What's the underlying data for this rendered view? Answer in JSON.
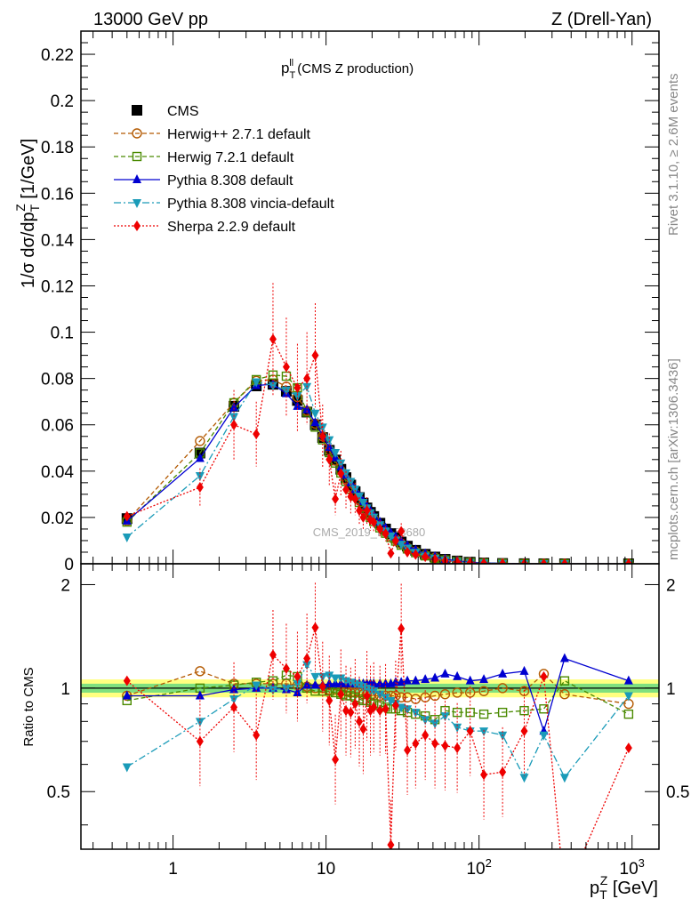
{
  "header": {
    "left": "13000 GeV pp",
    "right": "Z (Drell-Yan)"
  },
  "side_labels": {
    "rivet": "Rivet 3.1.10, ≥ 2.6M events",
    "mcplots": "mcplots.cern.ch [arXiv:1306.3436]"
  },
  "plot_title": {
    "main": "p",
    "sup": "ll",
    "sub": "T",
    "rest": " (CMS Z production)"
  },
  "watermark": "CMS_2019_I1753680",
  "axes": {
    "ylabel_upper": "1/σ dσ/dp",
    "ylabel_upper_sup": "Z",
    "ylabel_upper_sub": "T",
    "ylabel_upper_unit": " [1/GeV]",
    "ylabel_lower": "Ratio to CMS",
    "xlabel_main": "p",
    "xlabel_sup": "Z",
    "xlabel_sub": "T",
    "xlabel_unit": " [GeV]"
  },
  "colors": {
    "CMS": "#000000",
    "Herwig++ 2.7.1 default": "#b35900",
    "Herwig 7.2.1 default": "#4a8a00",
    "Pythia 8.308 default": "#0000d0",
    "Pythia 8.308 vincia-default": "#1a9bb8",
    "Sherpa 2.2.9 default": "#ee0000",
    "band_inner": "#7fe07f",
    "band_outer": "#ffff80"
  },
  "chart_data": [
    {
      "type": "line",
      "title": "",
      "xlabel": "p_T^Z [GeV]",
      "ylabel": "1/σ dσ/dp_T^Z [1/GeV]",
      "xscale": "log",
      "xlim": [
        0.25,
        1500
      ],
      "ylim": [
        0,
        0.23
      ],
      "yticks": [
        0,
        0.02,
        0.04,
        0.06,
        0.08,
        0.1,
        0.12,
        0.14,
        0.16,
        0.18,
        0.2,
        0.22
      ],
      "ytick_labels": [
        "0",
        "0.02",
        "0.04",
        "0.06",
        "0.08",
        "0.1",
        "0.12",
        "0.14",
        "0.16",
        "0.18",
        "0.2",
        "0.22"
      ],
      "legend_position": "top-left",
      "x": [
        0.5,
        1.5,
        2.5,
        3.5,
        4.5,
        5.5,
        6.5,
        7.5,
        8.5,
        9.5,
        10.5,
        11.5,
        12.5,
        13.5,
        14.5,
        15.5,
        16.5,
        17.5,
        18.5,
        19.5,
        20.5,
        22.5,
        24.5,
        26.5,
        28.5,
        31.0,
        34.0,
        38.5,
        44.5,
        51.5,
        60.0,
        72.0,
        87.5,
        107.5,
        142.5,
        197.5,
        265.0,
        362.5,
        950.0
      ],
      "series": [
        {
          "name": "CMS",
          "marker": "square",
          "values": [
            0.0195,
            0.0478,
            0.068,
            0.0768,
            0.0775,
            0.0745,
            0.0705,
            0.0655,
            0.06,
            0.0545,
            0.049,
            0.0448,
            0.0408,
            0.0372,
            0.034,
            0.0311,
            0.0286,
            0.0262,
            0.0241,
            0.0222,
            0.0204,
            0.0175,
            0.015,
            0.013,
            0.0113,
            0.0094,
            0.0076,
            0.0058,
            0.0041,
            0.0029,
            0.0019,
            0.0012,
            0.00067,
            0.00036,
            0.00014,
            4e-05,
            1.2e-05,
            4e-06,
            3e-07
          ]
        },
        {
          "name": "Herwig++ 2.7.1 default",
          "marker": "circle-open",
          "values": [
            0.0185,
            0.053,
            0.0695,
            0.079,
            0.0795,
            0.0765,
            0.072,
            0.066,
            0.0605,
            0.055,
            0.049,
            0.0445,
            0.0402,
            0.0365,
            0.033,
            0.0302,
            0.0276,
            0.0252,
            0.023,
            0.0211,
            0.0193,
            0.0164,
            0.0139,
            0.012,
            0.0104,
            0.0086,
            0.0069,
            0.0053,
            0.0037,
            0.0026,
            0.0017,
            0.0011,
            0.00064,
            0.00035,
            0.00014,
            3.8e-05,
            1.3e-05,
            3.8e-06,
            3e-07
          ]
        },
        {
          "name": "Herwig 7.2.1 default",
          "marker": "square-open",
          "values": [
            0.018,
            0.0478,
            0.0695,
            0.0795,
            0.0815,
            0.081,
            0.076,
            0.0655,
            0.059,
            0.0535,
            0.048,
            0.0435,
            0.0392,
            0.0355,
            0.0322,
            0.0292,
            0.0265,
            0.0241,
            0.022,
            0.02,
            0.0183,
            0.0155,
            0.0132,
            0.0113,
            0.0098,
            0.008,
            0.0064,
            0.0048,
            0.0034,
            0.0023,
            0.0016,
            0.001,
            0.00057,
            0.00031,
            0.00012,
            3.4e-05,
            1.1e-05,
            4.2e-06,
            2.5e-07
          ]
        },
        {
          "name": "Pythia 8.308 default",
          "marker": "triangle-up",
          "values": [
            0.0185,
            0.0455,
            0.0675,
            0.077,
            0.0775,
            0.0735,
            0.068,
            0.0665,
            0.061,
            0.0555,
            0.0502,
            0.0458,
            0.0418,
            0.0382,
            0.035,
            0.032,
            0.0294,
            0.0269,
            0.0248,
            0.0229,
            0.021,
            0.018,
            0.0155,
            0.0134,
            0.0117,
            0.0097,
            0.0079,
            0.006,
            0.0043,
            0.0031,
            0.002,
            0.00125,
            0.0007,
            0.00038,
            0.00016,
            4.3e-05,
            1.2e-05,
            4.9e-06,
            3e-07
          ]
        },
        {
          "name": "Pythia 8.308 vincia-default",
          "marker": "triangle-down",
          "values": [
            0.0115,
            0.038,
            0.0635,
            0.0785,
            0.077,
            0.075,
            0.0725,
            0.0765,
            0.065,
            0.059,
            0.0535,
            0.048,
            0.0435,
            0.0392,
            0.0355,
            0.0322,
            0.0292,
            0.0265,
            0.0241,
            0.022,
            0.0201,
            0.0168,
            0.0141,
            0.012,
            0.0102,
            0.0084,
            0.0067,
            0.0049,
            0.0033,
            0.0023,
            0.0015,
            0.0009,
            0.0005,
            0.00027,
            0.0001,
            2.3e-05,
            8.5e-06,
            2.2e-06,
            2.9e-07
          ]
        },
        {
          "name": "Sherpa 2.2.9 default",
          "marker": "diamond",
          "values": [
            0.0205,
            0.033,
            0.06,
            0.056,
            0.097,
            0.085,
            0.076,
            0.08,
            0.09,
            0.055,
            0.045,
            0.028,
            0.039,
            0.032,
            0.029,
            0.028,
            0.023,
            0.02,
            0.023,
            0.019,
            0.018,
            0.015,
            0.013,
            0.0045,
            0.01,
            0.014,
            0.005,
            0.004,
            0.003,
            0.002,
            0.0013,
            0.0008,
            0.0005,
            0.0002,
            8e-05,
            3e-05,
            1.3e-05,
            1e-06,
            2e-07
          ]
        }
      ]
    },
    {
      "type": "line",
      "title": "",
      "xlabel": "p_T^Z [GeV]",
      "ylabel": "Ratio to CMS",
      "xscale": "log",
      "xlim": [
        0.25,
        1500
      ],
      "ylim": [
        0.34,
        2.3
      ],
      "yscale": "log",
      "yticks": [
        0.5,
        1,
        2
      ],
      "ytick_labels": [
        "0.5",
        "1",
        "2"
      ],
      "xticks": [
        1,
        10,
        100,
        1000
      ],
      "xtick_labels": [
        "1",
        "10",
        "10^2",
        "10^3"
      ],
      "reference_band": {
        "inner": [
          0.97,
          1.03
        ],
        "outer": [
          0.94,
          1.06
        ]
      },
      "x": [
        0.5,
        1.5,
        2.5,
        3.5,
        4.5,
        5.5,
        6.5,
        7.5,
        8.5,
        9.5,
        10.5,
        11.5,
        12.5,
        13.5,
        14.5,
        15.5,
        16.5,
        17.5,
        18.5,
        19.5,
        20.5,
        22.5,
        24.5,
        26.5,
        28.5,
        31.0,
        34.0,
        38.5,
        44.5,
        51.5,
        60.0,
        72.0,
        87.5,
        107.5,
        142.5,
        197.5,
        265.0,
        362.5,
        950.0
      ],
      "series": [
        {
          "name": "Herwig++ 2.7.1 default",
          "values": [
            0.95,
            1.12,
            1.03,
            1.03,
            1.03,
            1.03,
            1.02,
            1.01,
            1.0,
            1.0,
            0.99,
            0.99,
            0.98,
            0.98,
            0.97,
            0.97,
            0.97,
            0.96,
            0.96,
            0.95,
            0.95,
            0.95,
            0.95,
            0.95,
            0.95,
            0.94,
            0.94,
            0.93,
            0.94,
            0.95,
            0.96,
            0.97,
            0.97,
            0.98,
            1.0,
            0.98,
            1.1,
            0.96,
            0.9
          ]
        },
        {
          "name": "Herwig 7.2.1 default",
          "values": [
            0.92,
            1.0,
            1.02,
            1.04,
            1.05,
            1.09,
            1.08,
            1.0,
            0.98,
            0.98,
            0.98,
            0.97,
            0.96,
            0.95,
            0.95,
            0.94,
            0.93,
            0.92,
            0.92,
            0.91,
            0.9,
            0.89,
            0.88,
            0.87,
            0.87,
            0.86,
            0.85,
            0.84,
            0.83,
            0.81,
            0.86,
            0.85,
            0.85,
            0.84,
            0.85,
            0.86,
            0.87,
            1.05,
            0.84
          ]
        },
        {
          "name": "Pythia 8.308 default",
          "values": [
            0.95,
            0.95,
            0.99,
            1.0,
            1.0,
            0.99,
            0.97,
            1.02,
            1.02,
            1.02,
            1.03,
            1.03,
            1.03,
            1.03,
            1.03,
            1.03,
            1.03,
            1.03,
            1.03,
            1.03,
            1.03,
            1.03,
            1.03,
            1.03,
            1.04,
            1.04,
            1.05,
            1.05,
            1.06,
            1.07,
            1.1,
            1.08,
            1.05,
            1.06,
            1.1,
            1.12,
            0.75,
            1.22,
            1.05
          ]
        },
        {
          "name": "Pythia 8.308 vincia-default",
          "values": [
            0.59,
            0.8,
            0.93,
            1.02,
            0.99,
            1.0,
            1.03,
            1.17,
            1.08,
            1.08,
            1.09,
            1.07,
            1.07,
            1.05,
            1.04,
            1.03,
            1.02,
            1.01,
            1.0,
            0.99,
            0.98,
            0.96,
            0.94,
            0.92,
            0.9,
            0.88,
            0.87,
            0.85,
            0.81,
            0.79,
            0.83,
            0.77,
            0.75,
            0.75,
            0.73,
            0.55,
            0.73,
            0.55,
            0.95
          ]
        },
        {
          "name": "Sherpa 2.2.9 default",
          "values": [
            1.05,
            0.7,
            0.88,
            0.73,
            1.25,
            1.14,
            1.08,
            1.22,
            1.5,
            1.01,
            0.92,
            0.62,
            0.96,
            0.86,
            0.85,
            0.9,
            0.8,
            0.76,
            0.95,
            0.86,
            0.88,
            0.86,
            0.87,
            0.35,
            0.89,
            1.49,
            0.66,
            0.69,
            0.73,
            0.69,
            0.68,
            0.67,
            0.75,
            0.56,
            0.57,
            0.75,
            1.08,
            0.25,
            0.67
          ]
        }
      ]
    }
  ]
}
